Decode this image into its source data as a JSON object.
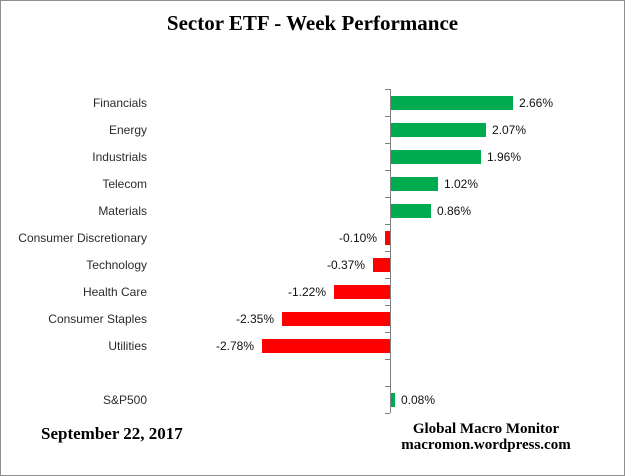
{
  "title": "Sector ETF - Week Performance",
  "footer": {
    "date": "September 22, 2017",
    "source_line1": "Global Macro Monitor",
    "source_line2": "macromon.wordpress.com"
  },
  "colors": {
    "positive_bar": "#00AB4F",
    "negative_bar": "#FF0000",
    "axis": "#808080",
    "category_text": "#2b2b2b",
    "value_text": "#111111",
    "border": "#8f8f8f"
  },
  "chart_data": {
    "type": "bar",
    "orientation": "horizontal",
    "title": "Sector ETF - Week Performance",
    "xlabel": "",
    "ylabel": "",
    "grid": false,
    "legend": null,
    "xlim": [
      -3,
      5
    ],
    "categories": [
      "Financials",
      "Energy",
      "Industrials",
      "Telecom",
      "Materials",
      "Consumer Discretionary",
      "Technology",
      "Health Care",
      "Consumer Staples",
      "Utilities",
      "S&P500"
    ],
    "values": [
      2.66,
      2.07,
      1.96,
      1.02,
      0.86,
      -0.1,
      -0.37,
      -1.22,
      -2.35,
      -2.78,
      0.08
    ],
    "value_labels": [
      "2.66%",
      "2.07%",
      "1.96%",
      "1.02%",
      "0.86%",
      "-0.10%",
      "-0.37%",
      "-1.22%",
      "-2.35%",
      "-2.78%",
      "0.08%"
    ],
    "layout_hint": {
      "blank_row_before_last": true,
      "value_labels_outside": true
    }
  }
}
